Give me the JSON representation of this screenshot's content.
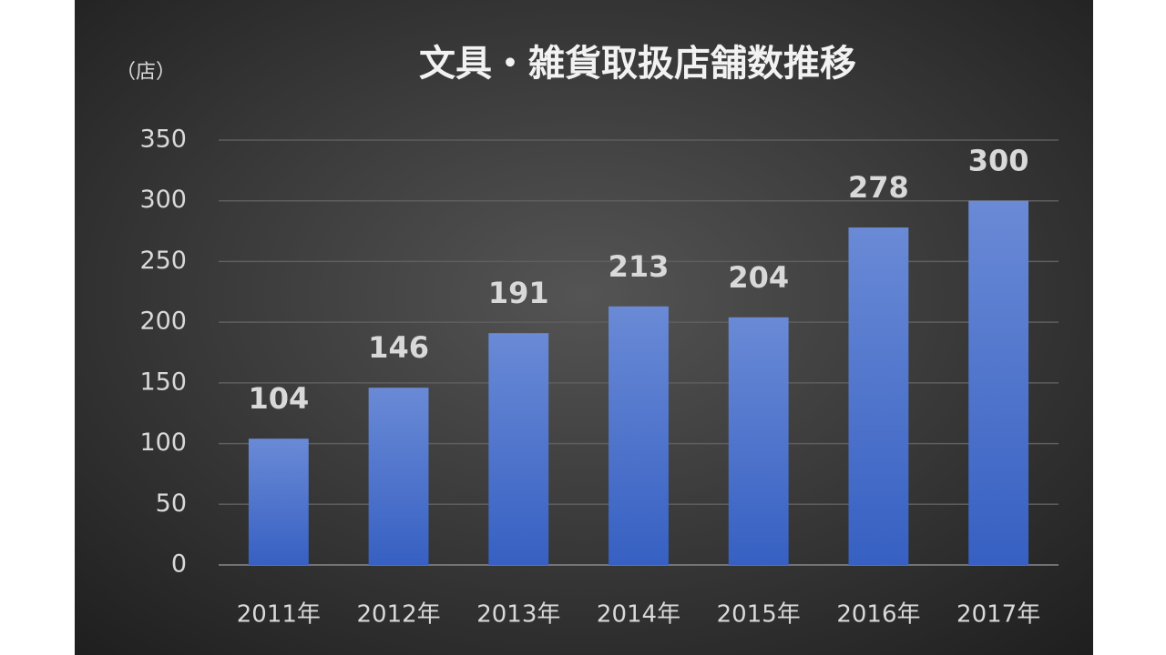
{
  "chart_data": {
    "type": "bar",
    "title": "文具・雑貨取扱店舗数推移",
    "y_label": "（店）",
    "categories": [
      "2011年",
      "2012年",
      "2013年",
      "2014年",
      "2015年",
      "2016年",
      "2017年"
    ],
    "values": [
      104,
      146,
      191,
      213,
      204,
      278,
      300
    ],
    "color": "#4a6fcb",
    "ylim": [
      0,
      350
    ],
    "yticks": [
      0,
      50,
      100,
      150,
      200,
      250,
      300,
      350
    ],
    "grid": true
  }
}
